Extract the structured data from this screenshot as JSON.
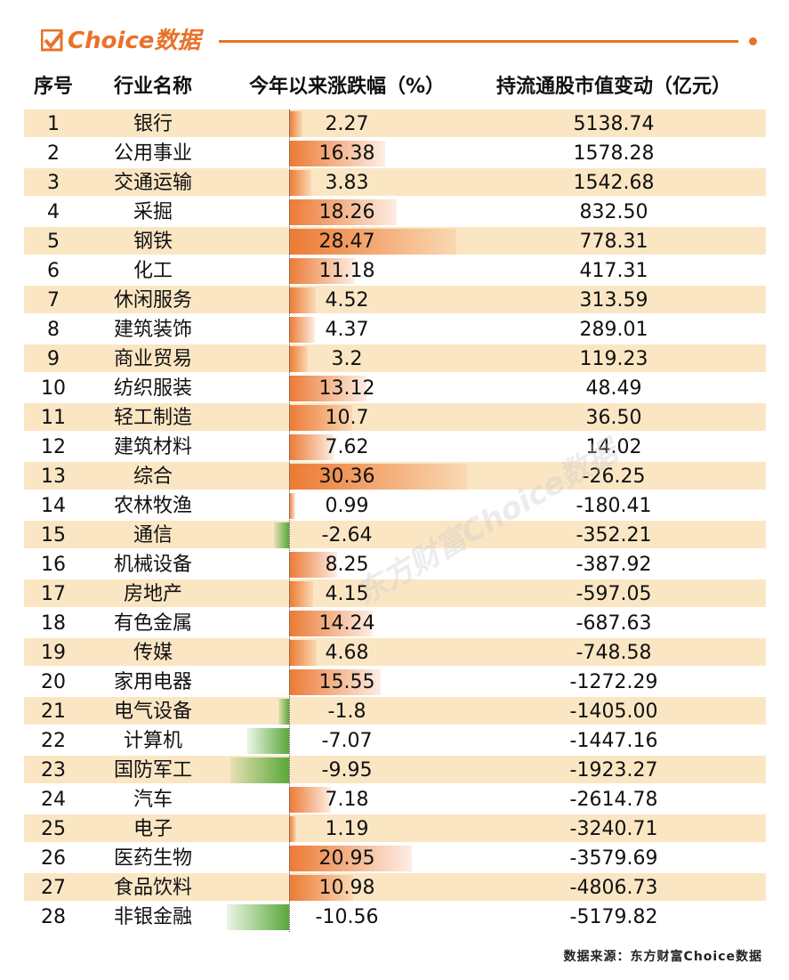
{
  "header": {
    "logo": "Choice数据"
  },
  "table": {
    "columns": [
      "序号",
      "行业名称",
      "今年以来涨跌幅（%）",
      "持流通股市值变动（亿元）"
    ],
    "rows": [
      [
        1,
        "银行",
        2.27,
        "5138.74"
      ],
      [
        2,
        "公用事业",
        16.38,
        "1578.28"
      ],
      [
        3,
        "交通运输",
        3.83,
        "1542.68"
      ],
      [
        4,
        "采掘",
        18.26,
        "832.50"
      ],
      [
        5,
        "钢铁",
        28.47,
        "778.31"
      ],
      [
        6,
        "化工",
        11.18,
        "417.31"
      ],
      [
        7,
        "休闲服务",
        4.52,
        "313.59"
      ],
      [
        8,
        "建筑装饰",
        4.37,
        "289.01"
      ],
      [
        9,
        "商业贸易",
        3.2,
        "119.23"
      ],
      [
        10,
        "纺织服装",
        13.12,
        "48.49"
      ],
      [
        11,
        "轻工制造",
        10.7,
        "36.50"
      ],
      [
        12,
        "建筑材料",
        7.62,
        "14.02"
      ],
      [
        13,
        "综合",
        30.36,
        "-26.25"
      ],
      [
        14,
        "农林牧渔",
        0.99,
        "-180.41"
      ],
      [
        15,
        "通信",
        -2.64,
        "-352.21"
      ],
      [
        16,
        "机械设备",
        8.25,
        "-387.92"
      ],
      [
        17,
        "房地产",
        4.15,
        "-597.05"
      ],
      [
        18,
        "有色金属",
        14.24,
        "-687.63"
      ],
      [
        19,
        "传媒",
        4.68,
        "-748.58"
      ],
      [
        20,
        "家用电器",
        15.55,
        "-1272.29"
      ],
      [
        21,
        "电气设备",
        -1.8,
        "-1405.00"
      ],
      [
        22,
        "计算机",
        -7.07,
        "-1447.16"
      ],
      [
        23,
        "国防军工",
        -9.95,
        "-1923.27"
      ],
      [
        24,
        "汽车",
        7.18,
        "-2614.78"
      ],
      [
        25,
        "电子",
        1.19,
        "-3240.71"
      ],
      [
        26,
        "医药生物",
        20.95,
        "-3579.69"
      ],
      [
        27,
        "食品饮料",
        10.98,
        "-4806.73"
      ],
      [
        28,
        "非银金融",
        -10.56,
        "-5179.82"
      ]
    ]
  },
  "watermark": "东方财富Choice数据",
  "source": "数据来源：东方财富Choice数据"
}
